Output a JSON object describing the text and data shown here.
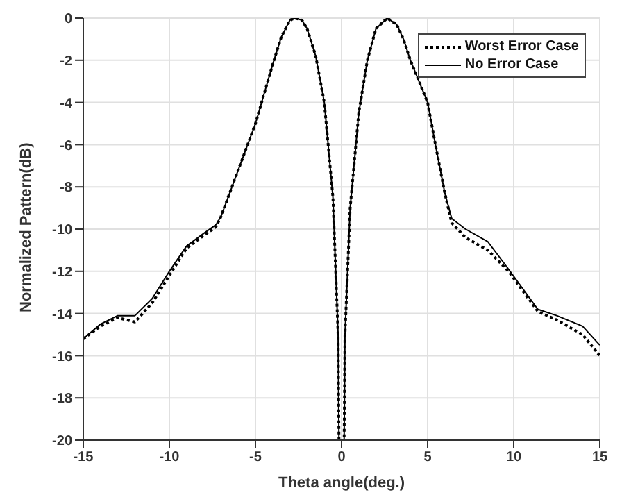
{
  "chart_data": {
    "type": "line",
    "xlabel": "Theta angle(deg.)",
    "ylabel": "Normalized Pattern(dB)",
    "x": [
      -15,
      -14,
      -13,
      -12,
      -11,
      -10,
      -9,
      -8,
      -7.3,
      -7,
      -6,
      -5,
      -4.5,
      -4,
      -3.5,
      -3,
      -2.7,
      -2.3,
      -2,
      -1.5,
      -1,
      -0.5,
      -0.2,
      -0.15,
      0.15,
      0.2,
      0.5,
      1,
      1.5,
      2,
      2.65,
      3.2,
      3.6,
      4,
      4.5,
      5,
      5.5,
      6,
      6.4,
      7.2,
      8.5,
      9.7,
      11.4,
      12.5,
      14,
      15
    ],
    "series": [
      {
        "name": "Worst Error Case",
        "color": "#000000",
        "line_style": "dotted",
        "values": [
          -15.2,
          -14.6,
          -14.2,
          -14.4,
          -13.5,
          -12.2,
          -10.9,
          -10.3,
          -9.9,
          -9.4,
          -7.2,
          -5,
          -3.6,
          -2.2,
          -0.9,
          -0.1,
          0,
          -0.1,
          -0.5,
          -1.8,
          -4,
          -8.5,
          -15,
          -20,
          -20,
          -15,
          -9,
          -4.5,
          -2,
          -0.5,
          0,
          -0.3,
          -1,
          -2,
          -3,
          -4,
          -6.2,
          -8.3,
          -9.7,
          -10.4,
          -11,
          -12,
          -13.9,
          -14.3,
          -15,
          -16
        ]
      },
      {
        "name": "No Error Case",
        "color": "#000000",
        "line_style": "solid",
        "values": [
          -15.2,
          -14.5,
          -14.1,
          -14.1,
          -13.3,
          -12,
          -10.8,
          -10.2,
          -9.8,
          -9.4,
          -7.2,
          -5,
          -3.6,
          -2.2,
          -0.9,
          -0.1,
          0,
          -0.1,
          -0.5,
          -1.8,
          -4,
          -8.5,
          -15,
          -20,
          -20,
          -15,
          -9,
          -4.5,
          -2,
          -0.5,
          0,
          -0.3,
          -1,
          -2,
          -3,
          -4,
          -6.2,
          -8.3,
          -9.5,
          -10,
          -10.6,
          -11.9,
          -13.8,
          -14.1,
          -14.6,
          -15.5
        ]
      }
    ],
    "xlim": [
      -15,
      15
    ],
    "xticks": [
      -15,
      -10,
      -5,
      0,
      5,
      10,
      15
    ],
    "ylim": [
      -20,
      0
    ],
    "yticks": [
      -20,
      -18,
      -16,
      -14,
      -12,
      -10,
      -8,
      -6,
      -4,
      -2,
      0
    ],
    "grid": true,
    "legend": "top right",
    "marker": "none"
  }
}
